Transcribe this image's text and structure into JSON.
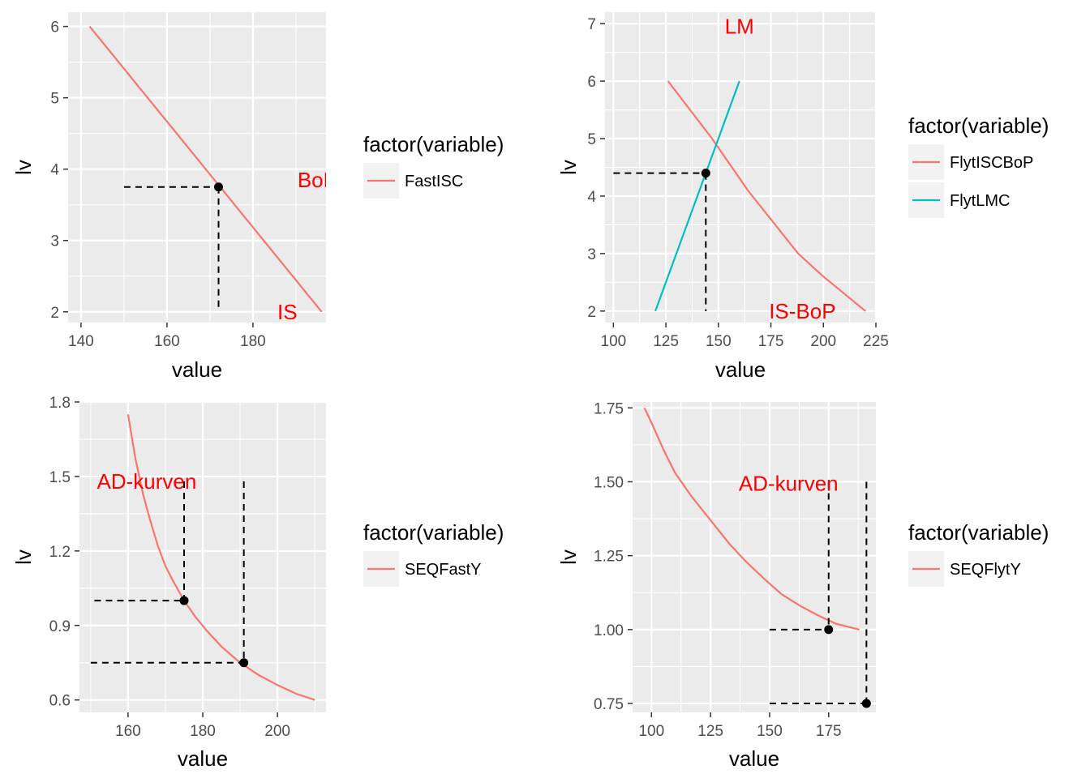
{
  "colors": {
    "panel_bg": "#EBEBEB",
    "grid": "#FFFFFF",
    "series1": "#F8766D",
    "series2": "#00BFC4",
    "annotation": "#FF0000",
    "guide": "#000000"
  },
  "chart_data": [
    {
      "type": "line",
      "xlabel": "value",
      "ylabel": "lv",
      "xlim": [
        137,
        197
      ],
      "ylim": [
        1.85,
        6.2
      ],
      "xticks": [
        140,
        160,
        180
      ],
      "xtick_labels": [
        "140",
        "160",
        "180"
      ],
      "yticks": [
        2,
        3,
        4,
        5,
        6
      ],
      "ytick_labels": [
        "2",
        "3",
        "4",
        "5",
        "6"
      ],
      "legend_title": "factor(variable)",
      "legend_position": "right",
      "series": [
        {
          "name": "FastISC",
          "color": "#F8766D",
          "x": [
            142,
            196
          ],
          "y": [
            6,
            2
          ]
        }
      ],
      "points": [
        {
          "x": 172,
          "y": 3.75
        }
      ],
      "guides": [
        {
          "x": [
            150,
            172
          ],
          "y": [
            3.75,
            3.75
          ]
        },
        {
          "x": [
            172,
            172
          ],
          "y": [
            3.75,
            2
          ]
        }
      ],
      "annotations": [
        {
          "text": "BoP",
          "x": 195,
          "y": 3.85
        },
        {
          "text": "IS",
          "x": 188,
          "y": 2.0
        }
      ]
    },
    {
      "type": "line",
      "xlabel": "value",
      "ylabel": "lv",
      "xlim": [
        96,
        225
      ],
      "ylim": [
        1.8,
        7.2
      ],
      "xticks": [
        100,
        125,
        150,
        175,
        200,
        225
      ],
      "xtick_labels": [
        "100",
        "125",
        "150",
        "175",
        "200",
        "225"
      ],
      "yticks": [
        2,
        3,
        4,
        5,
        6,
        7
      ],
      "ytick_labels": [
        "2",
        "3",
        "4",
        "5",
        "6",
        "7"
      ],
      "legend_title": "factor(variable)",
      "legend_position": "right",
      "series": [
        {
          "name": "FlytISCBoP",
          "color": "#F8766D",
          "x": [
            126,
            147,
            164,
            188,
            200,
            220
          ],
          "y": [
            6,
            5,
            4.1,
            3,
            2.6,
            2
          ]
        },
        {
          "name": "FlytLMC",
          "color": "#00BFC4",
          "x": [
            120,
            160
          ],
          "y": [
            2,
            6
          ]
        }
      ],
      "points": [
        {
          "x": 144,
          "y": 4.4
        }
      ],
      "guides": [
        {
          "x": [
            100,
            144
          ],
          "y": [
            4.4,
            4.4
          ]
        },
        {
          "x": [
            144,
            144
          ],
          "y": [
            4.4,
            2
          ]
        }
      ],
      "annotations": [
        {
          "text": "LM",
          "x": 160,
          "y": 6.95
        },
        {
          "text": "IS-BoP",
          "x": 190,
          "y": 2.0
        }
      ]
    },
    {
      "type": "line",
      "xlabel": "value",
      "ylabel": "lv",
      "xlim": [
        147,
        213
      ],
      "ylim": [
        0.55,
        1.8
      ],
      "xticks": [
        160,
        180,
        200
      ],
      "xtick_labels": [
        "160",
        "180",
        "200"
      ],
      "yticks": [
        0.6,
        0.9,
        1.2,
        1.5,
        1.8
      ],
      "ytick_labels": [
        "0.6",
        "0.9",
        "1.2",
        "1.5",
        "1.8"
      ],
      "legend_title": "factor(variable)",
      "legend_position": "right",
      "series": [
        {
          "name": "SEQFastY",
          "color": "#F8766D",
          "x": [
            160,
            162,
            164,
            166,
            168,
            170,
            172,
            175,
            178,
            181,
            185,
            190,
            195,
            200,
            205,
            210
          ],
          "y": [
            1.75,
            1.57,
            1.43,
            1.32,
            1.22,
            1.14,
            1.08,
            1.0,
            0.935,
            0.88,
            0.815,
            0.75,
            0.7,
            0.66,
            0.625,
            0.6
          ]
        }
      ],
      "points": [
        {
          "x": 175,
          "y": 1.0
        },
        {
          "x": 191,
          "y": 0.75
        }
      ],
      "guides": [
        {
          "x": [
            151,
            175
          ],
          "y": [
            1.0,
            1.0
          ]
        },
        {
          "x": [
            175,
            175
          ],
          "y": [
            1.48,
            1.0
          ]
        },
        {
          "x": [
            150,
            191
          ],
          "y": [
            0.75,
            0.75
          ]
        },
        {
          "x": [
            191,
            191
          ],
          "y": [
            1.48,
            0.75
          ]
        }
      ],
      "annotations": [
        {
          "text": "AD-kurven",
          "x": 165,
          "y": 1.48
        }
      ]
    },
    {
      "type": "line",
      "xlabel": "value",
      "ylabel": "lv",
      "xlim": [
        92,
        195
      ],
      "ylim": [
        0.72,
        1.77
      ],
      "xticks": [
        100,
        125,
        150,
        175
      ],
      "xtick_labels": [
        "100",
        "125",
        "150",
        "175"
      ],
      "yticks": [
        0.75,
        1.0,
        1.25,
        1.5,
        1.75
      ],
      "ytick_labels": [
        "0.75",
        "1.00",
        "1.25",
        "1.50",
        "1.75"
      ],
      "legend_title": "factor(variable)",
      "legend_position": "right",
      "series": [
        {
          "name": "SEQFlytY",
          "color": "#F8766D",
          "x": [
            97,
            100,
            105,
            110,
            117,
            125,
            133,
            140,
            148,
            155,
            163,
            170,
            178,
            188
          ],
          "y": [
            1.75,
            1.7,
            1.61,
            1.53,
            1.45,
            1.37,
            1.29,
            1.23,
            1.17,
            1.12,
            1.08,
            1.05,
            1.02,
            1.0
          ]
        }
      ],
      "points": [
        {
          "x": 175,
          "y": 1.0
        },
        {
          "x": 191,
          "y": 0.75
        }
      ],
      "guides": [
        {
          "x": [
            150,
            175
          ],
          "y": [
            1.0,
            1.0
          ]
        },
        {
          "x": [
            175,
            175
          ],
          "y": [
            1.5,
            1.0
          ]
        },
        {
          "x": [
            150,
            191
          ],
          "y": [
            0.75,
            0.75
          ]
        },
        {
          "x": [
            191,
            191
          ],
          "y": [
            1.5,
            0.75
          ]
        }
      ],
      "annotations": [
        {
          "text": "AD-kurven",
          "x": 158,
          "y": 1.495
        }
      ]
    }
  ]
}
